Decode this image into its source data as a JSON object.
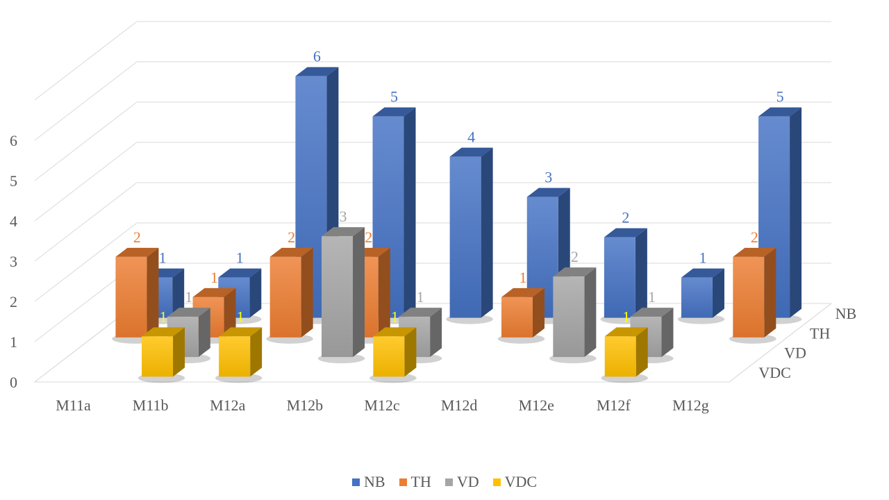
{
  "chart_data": {
    "type": "bar",
    "subtype": "3d-column",
    "title": "",
    "xlabel": "",
    "ylabel": "",
    "ylim": [
      0,
      6
    ],
    "yticks": [
      "0",
      "1",
      "2",
      "3",
      "4",
      "5",
      "6"
    ],
    "grid": true,
    "legend_position": "bottom",
    "categories": [
      "M11a",
      "M11b",
      "M12a",
      "M12b",
      "M12c",
      "M12d",
      "M12e",
      "M12f",
      "M12g"
    ],
    "depth_labels": [
      "NB",
      "TH",
      "VD",
      "VDC"
    ],
    "series": [
      {
        "name": "NB",
        "color": "#4472C4",
        "label_color": "#4472C4",
        "values": [
          1,
          1,
          6,
          5,
          4,
          3,
          2,
          1,
          5
        ]
      },
      {
        "name": "TH",
        "color": "#ED7D31",
        "label_color": "#ED7D31",
        "values": [
          2,
          1,
          2,
          2,
          null,
          1,
          null,
          null,
          2
        ]
      },
      {
        "name": "VD",
        "color": "#A5A5A5",
        "label_color": "#A5A5A5",
        "values": [
          null,
          1,
          null,
          3,
          1,
          null,
          2,
          1,
          null
        ]
      },
      {
        "name": "VDC",
        "color": "#FFC000",
        "label_color": "#FFFF00",
        "values": [
          null,
          1,
          1,
          null,
          1,
          null,
          null,
          1,
          null
        ]
      }
    ]
  }
}
